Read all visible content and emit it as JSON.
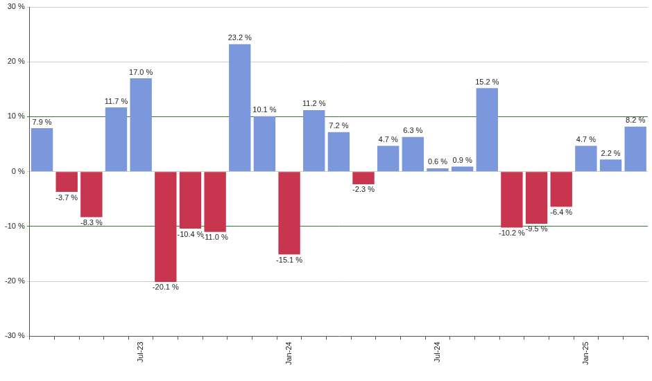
{
  "chart_data": {
    "type": "bar",
    "categories": [
      null,
      null,
      null,
      null,
      "Jul-23",
      null,
      null,
      null,
      null,
      null,
      "Jan-24",
      null,
      null,
      null,
      null,
      null,
      "Jul-24",
      null,
      null,
      null,
      null,
      null,
      "Jan-25",
      null,
      null
    ],
    "values": [
      7.9,
      -3.7,
      -8.3,
      11.7,
      17.0,
      -20.1,
      -10.4,
      -11.0,
      23.2,
      10.1,
      -15.1,
      11.2,
      7.2,
      -2.3,
      4.7,
      6.3,
      0.6,
      0.9,
      15.2,
      -10.2,
      -9.5,
      -6.4,
      4.7,
      2.2,
      8.2
    ],
    "value_labels": [
      "7.9 %",
      "-3.7 %",
      "-8.3 %",
      "11.7 %",
      "17.0 %",
      "-20.1 %",
      "-10.4 %",
      "-11.0 %",
      "23.2 %",
      "10.1 %",
      "-15.1 %",
      "11.2 %",
      "7.2 %",
      "-2.3 %",
      "4.7 %",
      "6.3 %",
      "0.6 %",
      "0.9 %",
      "15.2 %",
      "-10.2 %",
      "-9.5 %",
      "-6.4 %",
      "4.7 %",
      "2.2 %",
      "8.2 %"
    ],
    "colors": [
      "#7b98dc",
      "#c8354f",
      "#c8354f",
      "#7b98dc",
      "#7b98dc",
      "#c8354f",
      "#c8354f",
      "#c8354f",
      "#7b98dc",
      "#7b98dc",
      "#c8354f",
      "#7b98dc",
      "#7b98dc",
      "#c8354f",
      "#7b98dc",
      "#7b98dc",
      "#7b98dc",
      "#7b98dc",
      "#7b98dc",
      "#c8354f",
      "#c8354f",
      "#c8354f",
      "#7b98dc",
      "#7b98dc",
      "#7b98dc"
    ],
    "ylim": [
      -30,
      30
    ],
    "yticks": [
      {
        "value": -30,
        "label": "-30 %"
      },
      {
        "value": -20,
        "label": "-20 %"
      },
      {
        "value": -10,
        "label": "-10 %"
      },
      {
        "value": 0,
        "label": "0 %"
      },
      {
        "value": 10,
        "label": "10 %"
      },
      {
        "value": 20,
        "label": "20 %"
      },
      {
        "value": 30,
        "label": "30 %"
      }
    ],
    "grid": true,
    "data_labels": true
  }
}
